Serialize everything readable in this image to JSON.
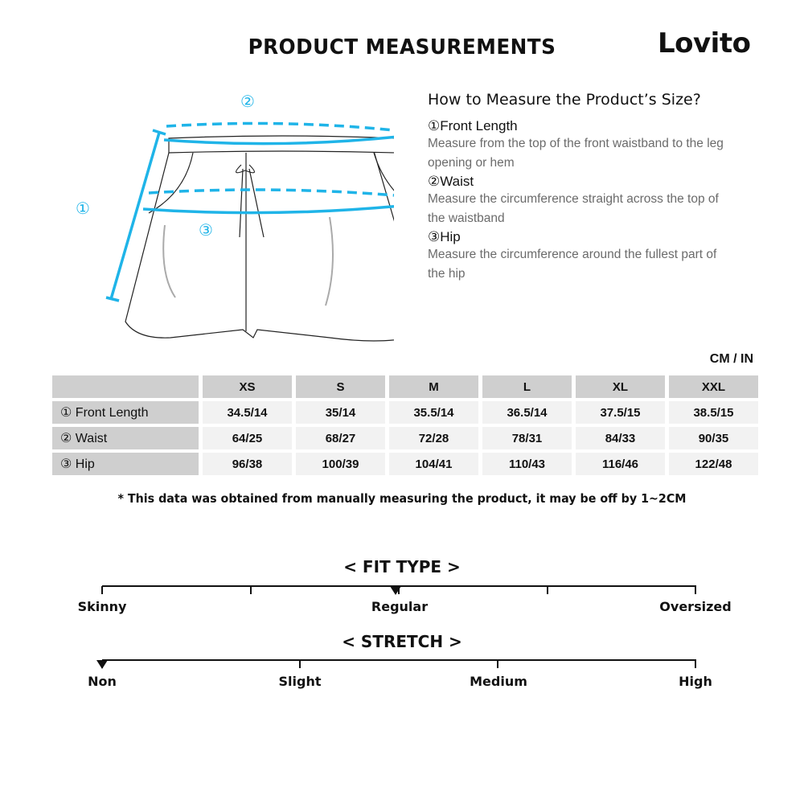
{
  "header": {
    "title": "PRODUCT MEASUREMENTS",
    "logo": "Lovito"
  },
  "diagram": {
    "labels": [
      "①",
      "②",
      "③"
    ],
    "accent": "#1fb4e8"
  },
  "howto": {
    "title": "How to Measure the Product’s Size?",
    "items": [
      {
        "name": "①Front Length",
        "desc": "Measure from the top of the front waistband to the leg opening or hem"
      },
      {
        "name": "②Waist",
        "desc": "Measure the circumference straight across the top of the waistband"
      },
      {
        "name": "③Hip",
        "desc": "Measure the circumference around the fullest part of the hip"
      }
    ]
  },
  "table": {
    "unit": "CM / IN",
    "sizes": [
      "XS",
      "S",
      "M",
      "L",
      "XL",
      "XXL"
    ],
    "rows": [
      {
        "label": "① Front Length",
        "values": [
          "34.5/14",
          "35/14",
          "35.5/14",
          "36.5/14",
          "37.5/15",
          "38.5/15"
        ]
      },
      {
        "label": "② Waist",
        "values": [
          "64/25",
          "68/27",
          "72/28",
          "78/31",
          "84/33",
          "90/35"
        ]
      },
      {
        "label": "③ Hip",
        "values": [
          "96/38",
          "100/39",
          "104/41",
          "110/43",
          "116/46",
          "122/48"
        ]
      }
    ]
  },
  "note": "* This data was obtained from manually measuring the product, it may be off by 1~2CM",
  "fit": {
    "title": "< FIT TYPE >",
    "labels": [
      "Skinny",
      "Regular",
      "Oversized"
    ],
    "selected": "Regular",
    "level": 0.5
  },
  "stretch": {
    "title": "< STRETCH >",
    "labels": [
      "Non",
      "Slight",
      "Medium",
      "High"
    ],
    "selected": "Non",
    "level": 0
  }
}
